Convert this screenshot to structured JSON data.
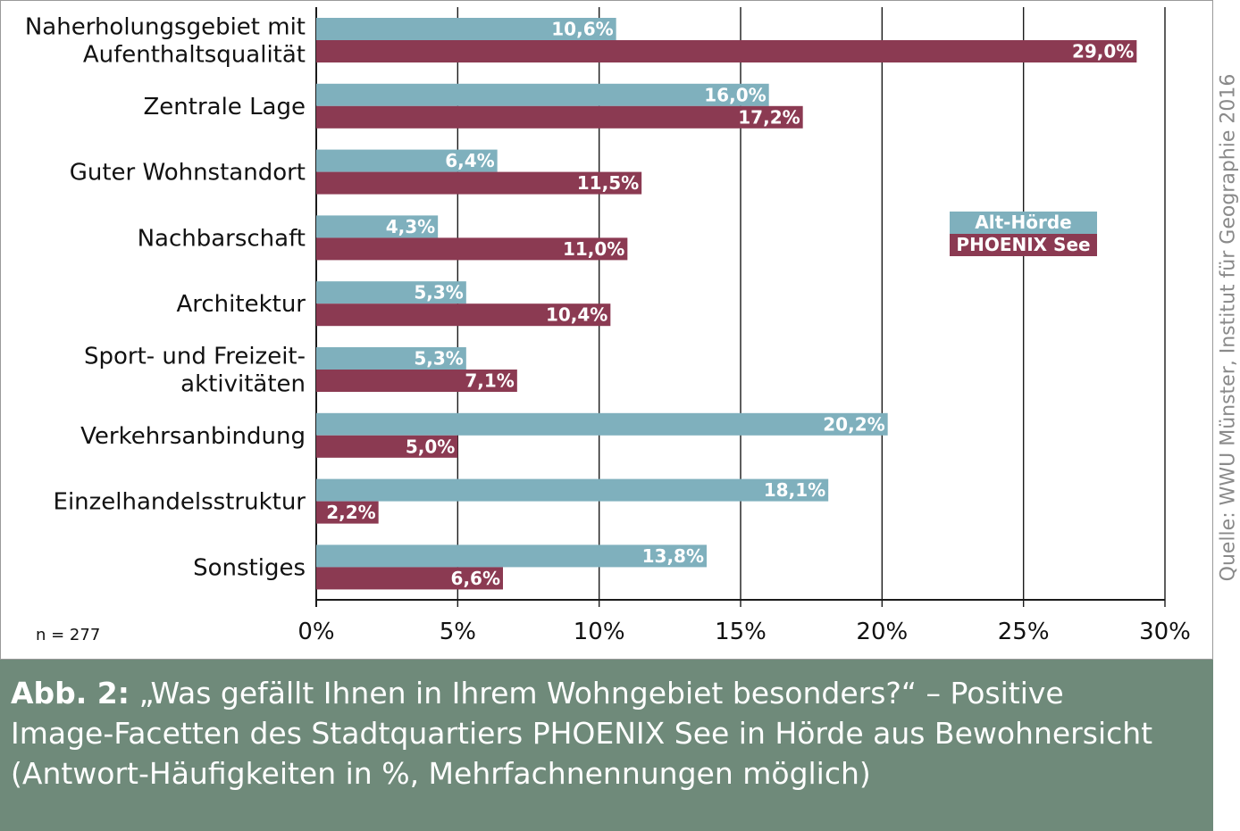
{
  "colors": {
    "alt_hoerde": "#7fb0bd",
    "phoenix_see": "#8b3a52",
    "caption_bg": "#6f8a7a",
    "grid": "#1a1a1a"
  },
  "chart_data": {
    "type": "bar",
    "orientation": "horizontal",
    "categories": [
      [
        "Naherholungsgebiet mit",
        "Aufenthaltsqualität"
      ],
      [
        "Zentrale Lage"
      ],
      [
        "Guter Wohnstandort"
      ],
      [
        "Nachbarschaft"
      ],
      [
        "Architektur"
      ],
      [
        "Sport- und Freizeit-",
        "aktivitäten"
      ],
      [
        "Verkehrsanbindung"
      ],
      [
        "Einzelhandelsstruktur"
      ],
      [
        "Sonstiges"
      ]
    ],
    "series": [
      {
        "name": "Alt-Hörde",
        "values": [
          10.6,
          16.0,
          6.4,
          4.3,
          5.3,
          5.3,
          20.2,
          18.1,
          13.8
        ],
        "labels": [
          "10,6%",
          "16,0%",
          "6,4%",
          "4,3%",
          "5,3%",
          "5,3%",
          "20,2%",
          "18,1%",
          "13,8%"
        ]
      },
      {
        "name": "PHOENIX See",
        "values": [
          29.0,
          17.2,
          11.5,
          11.0,
          10.4,
          7.1,
          5.0,
          2.2,
          6.6
        ],
        "labels": [
          "29,0%",
          "17,2%",
          "11,5%",
          "11,0%",
          "10,4%",
          "7,1%",
          "5,0%",
          "2,2%",
          "6,6%"
        ]
      }
    ],
    "xlim": [
      0,
      30
    ],
    "xticks": [
      0,
      5,
      10,
      15,
      20,
      25,
      30
    ],
    "xtick_labels": [
      "0%",
      "5%",
      "10%",
      "15%",
      "20%",
      "25%",
      "30%"
    ],
    "grid": "vertical",
    "legend": "right, inside plot"
  },
  "note": "n = 277",
  "source": "Quelle: WWU Münster, Institut für Geographie 2016",
  "caption": {
    "label": "Abb. 2:",
    "line1": " „Was gefällt Ihnen in Ihrem Wohngebiet besonders?“ – Positive",
    "line2": "Image-Facetten des Stadtquartiers PHOENIX See in Hörde aus Bewohnersicht",
    "line3": "(Antwort-Häufigkeiten in %, Mehrfachnennungen möglich)"
  }
}
